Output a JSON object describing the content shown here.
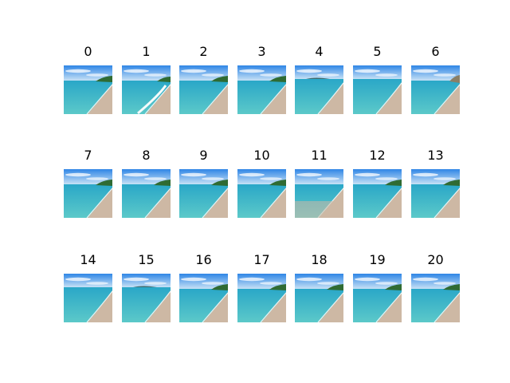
{
  "grid": {
    "images": [
      {
        "label": "0",
        "variant": "headland-right"
      },
      {
        "label": "1",
        "variant": "curved-surf"
      },
      {
        "label": "2",
        "variant": "headland-right"
      },
      {
        "label": "3",
        "variant": "headland-right"
      },
      {
        "label": "4",
        "variant": "island-horizon"
      },
      {
        "label": "5",
        "variant": "open-sea"
      },
      {
        "label": "6",
        "variant": "cliff-right"
      },
      {
        "label": "7",
        "variant": "headland-right"
      },
      {
        "label": "8",
        "variant": "headland-right"
      },
      {
        "label": "9",
        "variant": "headland-right"
      },
      {
        "label": "10",
        "variant": "headland-right"
      },
      {
        "label": "11",
        "variant": "shallow-beach"
      },
      {
        "label": "12",
        "variant": "headland-right"
      },
      {
        "label": "13",
        "variant": "headland-right"
      },
      {
        "label": "14",
        "variant": "open-sea"
      },
      {
        "label": "15",
        "variant": "island-horizon"
      },
      {
        "label": "16",
        "variant": "headland-right"
      },
      {
        "label": "17",
        "variant": "headland-right"
      },
      {
        "label": "18",
        "variant": "headland-right"
      },
      {
        "label": "19",
        "variant": "headland-right"
      },
      {
        "label": "20",
        "variant": "headland-right"
      }
    ]
  },
  "colors": {
    "sky_top": "#2f86e6",
    "sky_bottom": "#cfe6f6",
    "cloud": "#ffffff",
    "sea_far": "#2aa7c8",
    "sea_near": "#5cc9c9",
    "sand": "#cdb8a4",
    "land": "#2f6b33",
    "foam": "#f4fbfb"
  }
}
